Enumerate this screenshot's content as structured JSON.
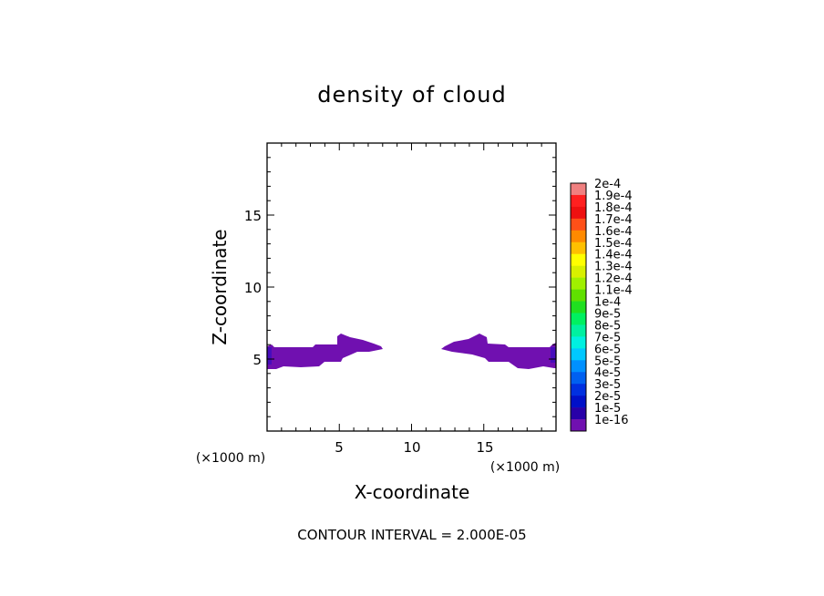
{
  "chart_data": {
    "type": "heatmap",
    "title": "density of cloud",
    "xlabel": "X-coordinate",
    "ylabel": "Z-coordinate",
    "x_unit": "(×1000 m)",
    "y_unit": "(×1000 m)",
    "xlim": [
      0,
      20
    ],
    "ylim": [
      0,
      20
    ],
    "x_ticks": [
      5,
      10,
      15
    ],
    "y_ticks": [
      5,
      10,
      15
    ],
    "footer": "CONTOUR INTERVAL = 2.000E-05",
    "colorbar": {
      "labels": [
        "2e-4",
        "1.9e-4",
        "1.8e-4",
        "1.7e-4",
        "1.6e-4",
        "1.5e-4",
        "1.4e-4",
        "1.3e-4",
        "1.2e-4",
        "1.1e-4",
        "1e-4",
        "9e-5",
        "8e-5",
        "7e-5",
        "6e-5",
        "5e-5",
        "4e-5",
        "3e-5",
        "2e-5",
        "1e-5",
        "1e-16"
      ],
      "colors": [
        "#f08080",
        "#ff2020",
        "#ee1010",
        "#ff5018",
        "#ff8a00",
        "#ffc000",
        "#ffff00",
        "#d8f000",
        "#a0f000",
        "#60e000",
        "#20e020",
        "#00f060",
        "#00f0a0",
        "#00f0e0",
        "#00c8ff",
        "#0090ff",
        "#0060f0",
        "#0030e0",
        "#0010c8",
        "#2800a8",
        "#7010b0"
      ]
    },
    "cloud_regions": [
      {
        "name": "left cloud band",
        "x_range": [
          0,
          7.9
        ],
        "z_range": [
          4.3,
          6.7
        ]
      },
      {
        "name": "right cloud band",
        "x_range": [
          12.0,
          20
        ],
        "z_range": [
          4.3,
          6.7
        ]
      }
    ]
  }
}
